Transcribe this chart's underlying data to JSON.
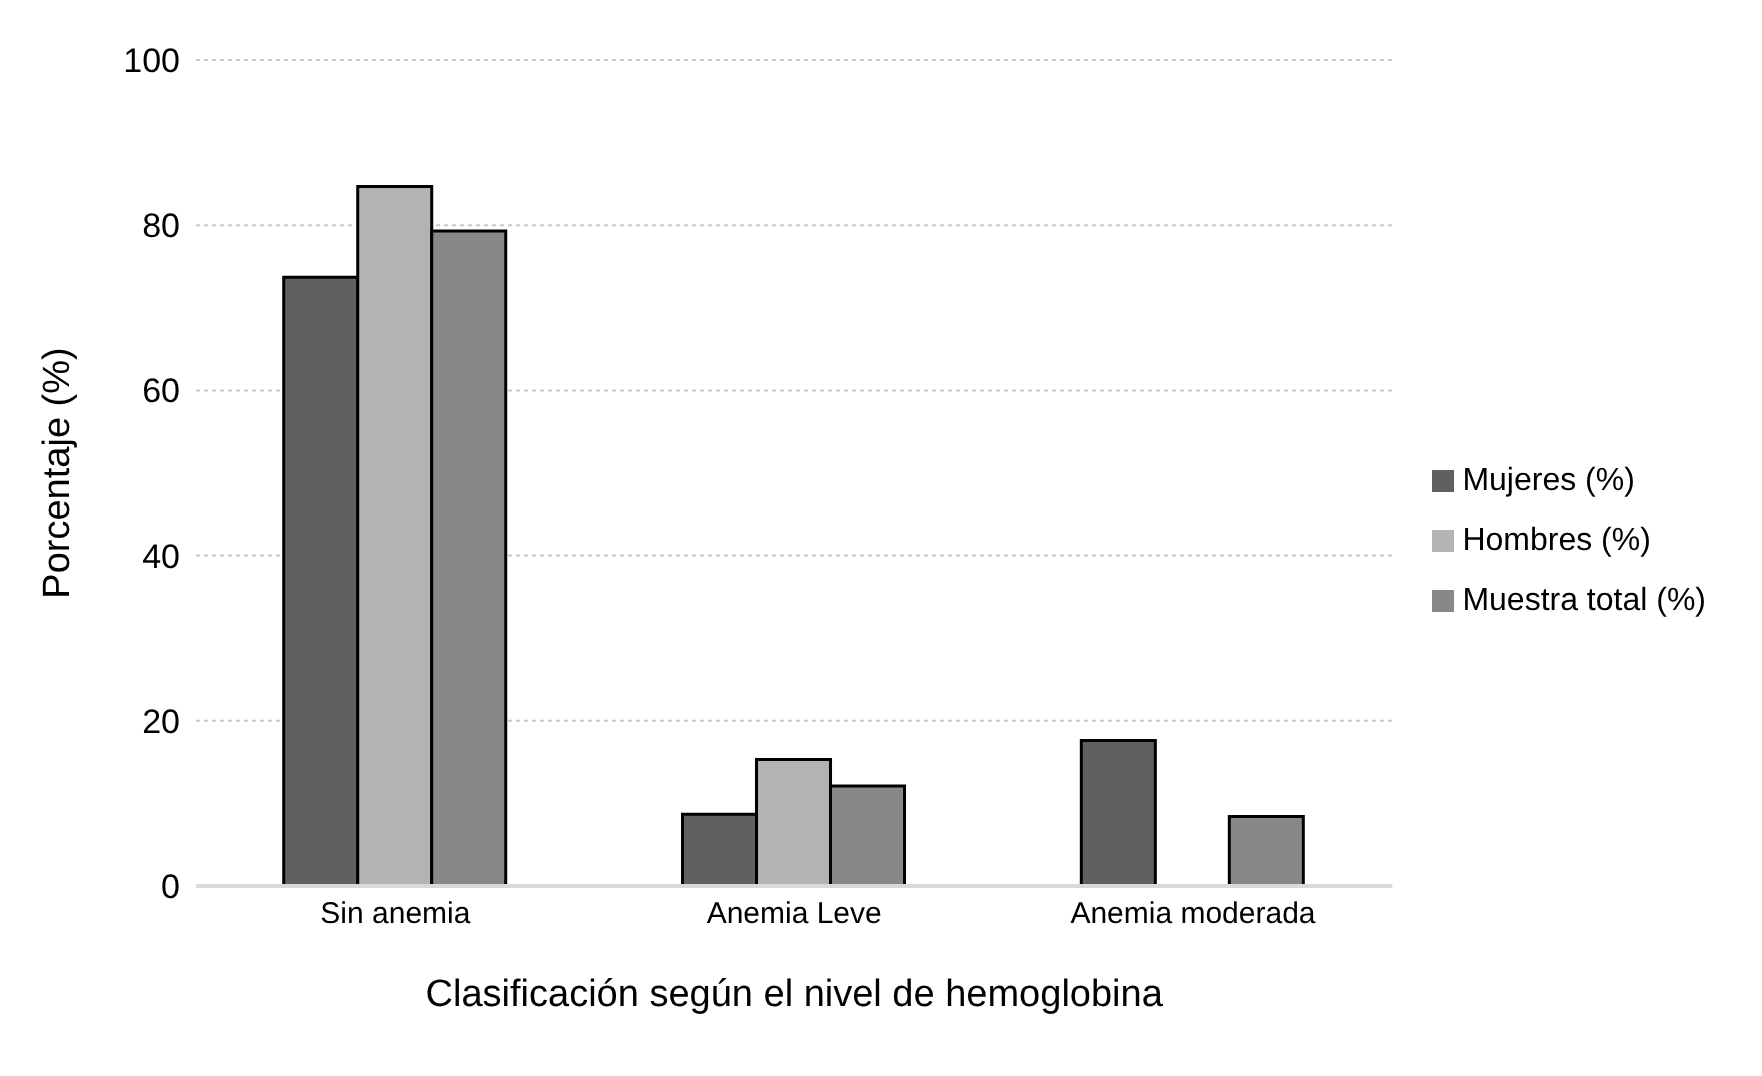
{
  "chart_data": {
    "type": "bar",
    "xlabel": "Clasificación según el nivel de hemoglobina",
    "ylabel": "Porcentaje (%)",
    "categories": [
      "Sin anemia",
      "Anemia Leve",
      "Anemia moderada"
    ],
    "series": [
      {
        "name": "Mujeres (%)",
        "color": "#606060",
        "values": [
          73.7,
          8.7,
          17.6
        ]
      },
      {
        "name": "Hombres (%)",
        "color": "#b3b3b3",
        "values": [
          84.7,
          15.3,
          0
        ]
      },
      {
        "name": "Muestra total (%)",
        "color": "#888888",
        "values": [
          79.3,
          12.1,
          8.4
        ]
      }
    ],
    "ylim": [
      0,
      100
    ],
    "yticks": [
      0,
      20,
      40,
      60,
      80,
      100
    ],
    "grid": "y",
    "legend": "right"
  }
}
